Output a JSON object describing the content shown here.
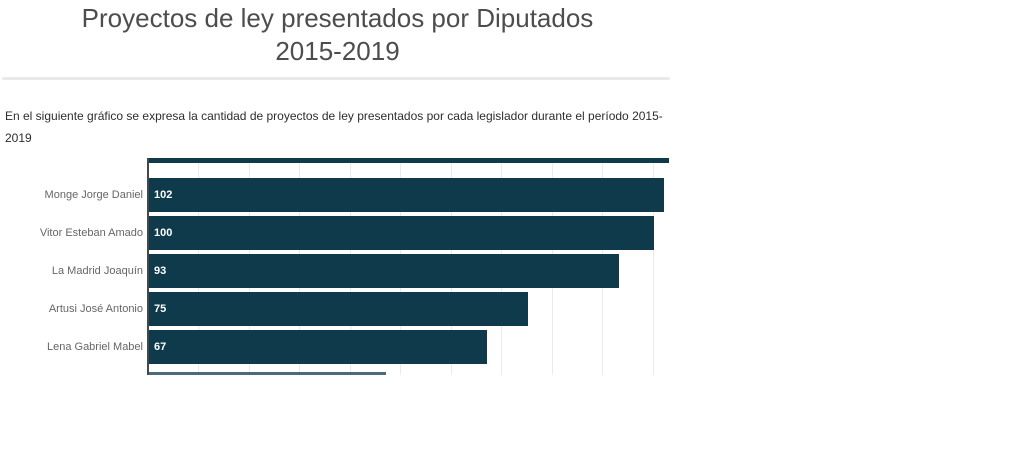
{
  "page": {
    "title_lines": [
      "Proyectos de ley presentados por Diputados",
      "2015-2019"
    ],
    "description_lines": [
      "En el siguiente gráfico se expresa la cantidad de proyectos de ley presentados por cada legislador durante el período 2015-",
      "2019"
    ]
  },
  "chart_data": {
    "type": "bar",
    "orientation": "horizontal",
    "title": "Proyectos de ley presentados por Diputados 2015-2019",
    "subtitle": "En el siguiente gráfico se expresa la cantidad de proyectos de ley presentados por cada legislador durante el período 2015-2019",
    "categories": [
      "Monge Jorge Daniel",
      "Vitor Esteban Amado",
      "La Madrid Joaquín",
      "Artusi José Antonio",
      "Lena Gabriel Mabel"
    ],
    "values": [
      102,
      100,
      93,
      75,
      67
    ],
    "xlabel": "",
    "ylabel": "",
    "xlim": [
      0,
      103
    ],
    "grid": {
      "visible": true,
      "interval": 10,
      "color": "#eaeaea"
    },
    "legend": "none",
    "bar_color": "#0e3a4c",
    "axis_line_color": "#474747",
    "category_label_color": "#666666",
    "value_label_color": "#ffffff",
    "clipped_bars": {
      "top": {
        "approx_value": 103
      },
      "bottom": {
        "approx_value": 47
      }
    }
  }
}
